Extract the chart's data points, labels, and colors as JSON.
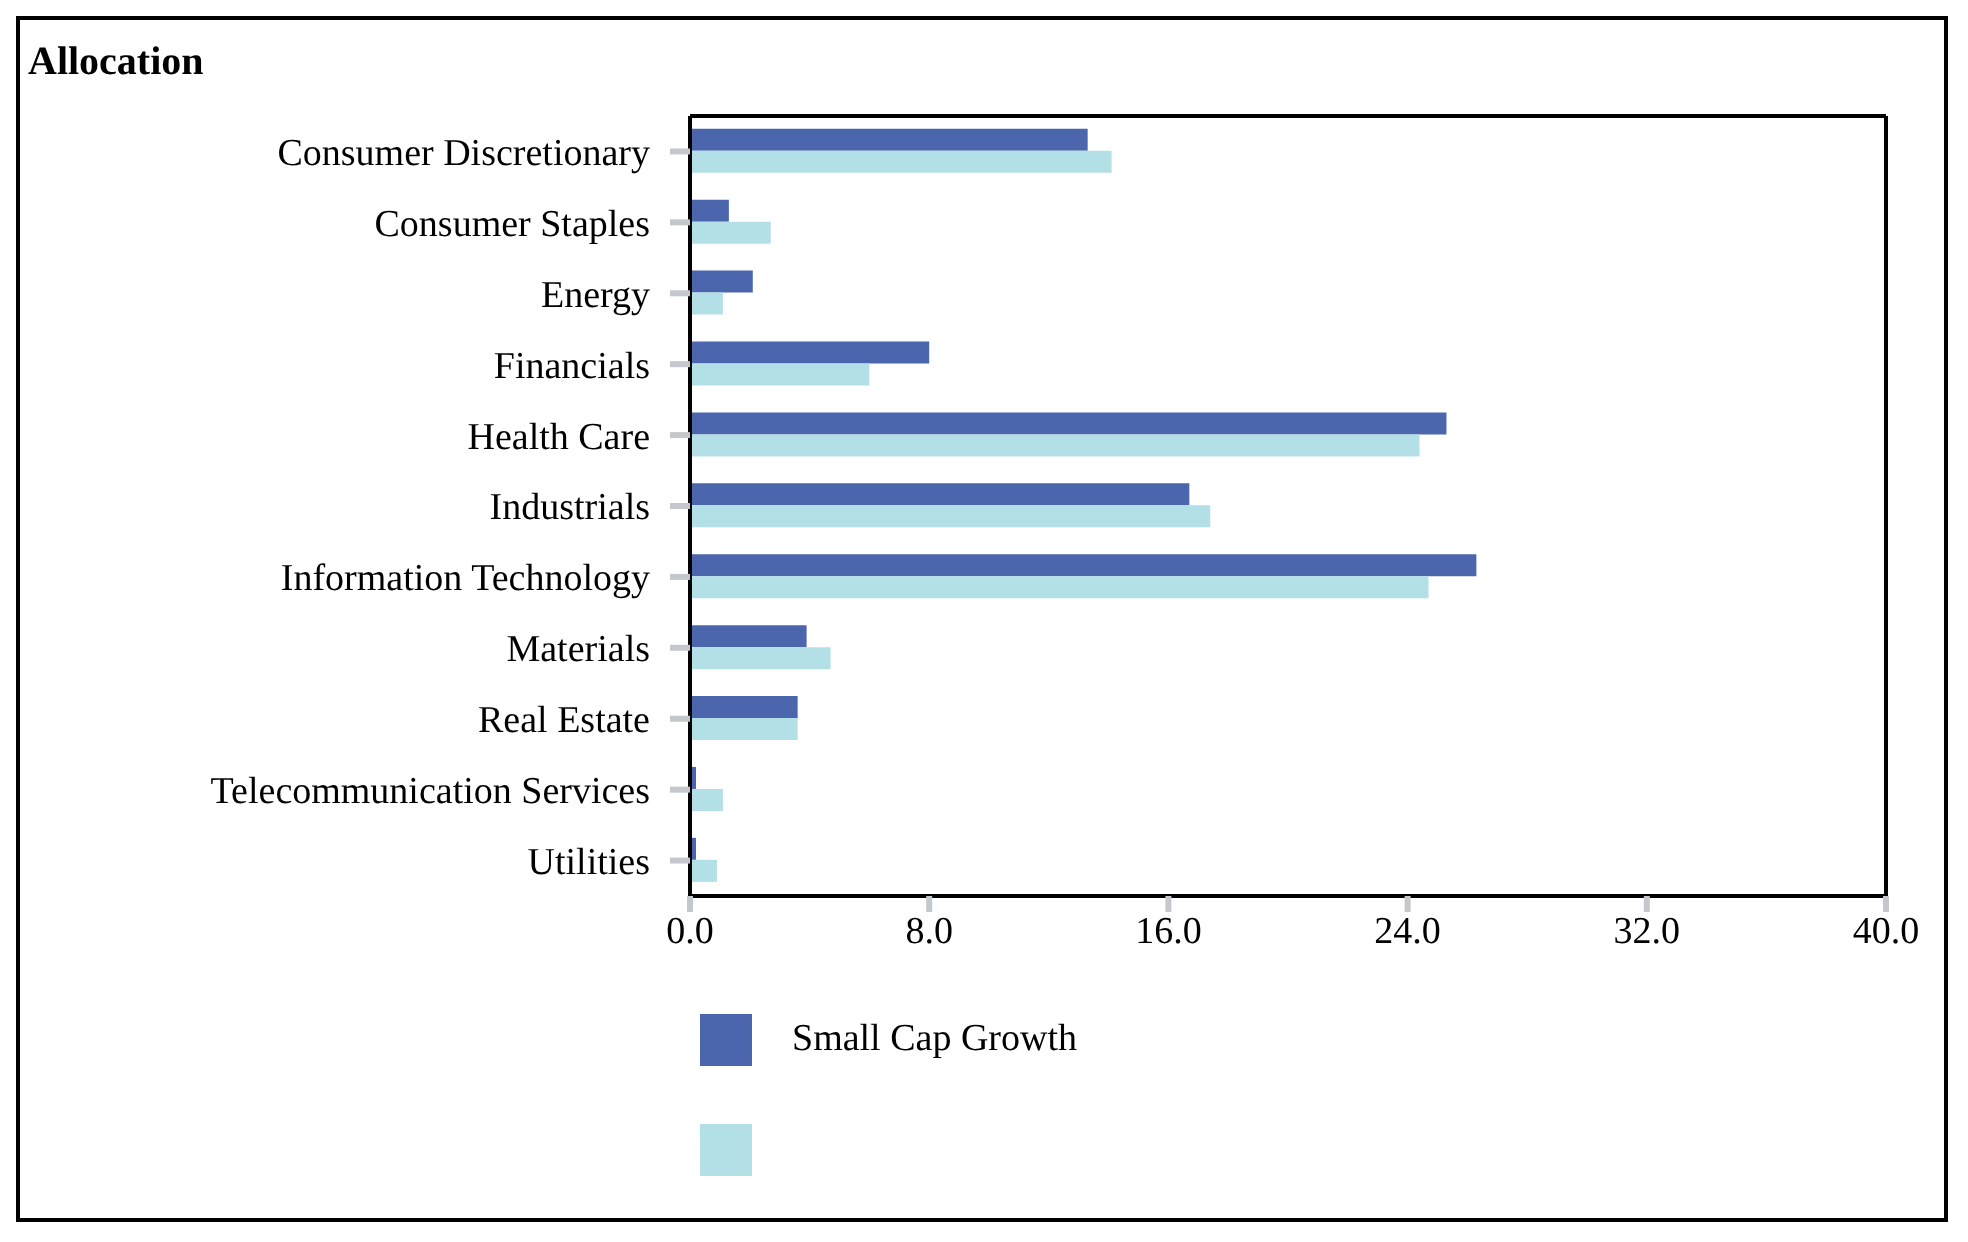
{
  "chart_data": {
    "type": "bar",
    "orientation": "horizontal",
    "title": "Allocation",
    "categories": [
      "Consumer Discretionary",
      "Consumer Staples",
      "Energy",
      "Financials",
      "Health Care",
      "Industrials",
      "Information Technology",
      "Materials",
      "Real Estate",
      "Telecommunication Services",
      "Utilities"
    ],
    "series": [
      {
        "name": "Small Cap Growth",
        "color": "#4c66ae",
        "values": [
          13.3,
          1.3,
          2.1,
          8.0,
          25.3,
          16.7,
          26.3,
          3.9,
          3.6,
          0.2,
          0.2
        ]
      },
      {
        "color": "#b3e0e6",
        "values": [
          14.1,
          2.7,
          1.1,
          6.0,
          24.4,
          17.4,
          24.7,
          4.7,
          3.6,
          1.1,
          0.9
        ]
      }
    ],
    "xlim": [
      0,
      40
    ],
    "xticks": [
      {
        "value": 0,
        "label": "0.0"
      },
      {
        "value": 8,
        "label": "8.0"
      },
      {
        "value": 16,
        "label": "16.0"
      },
      {
        "value": 24,
        "label": "24.0"
      },
      {
        "value": 32,
        "label": "32.0"
      },
      {
        "value": 40,
        "label": "40.0"
      }
    ],
    "grid": false,
    "legend": "bottom"
  }
}
